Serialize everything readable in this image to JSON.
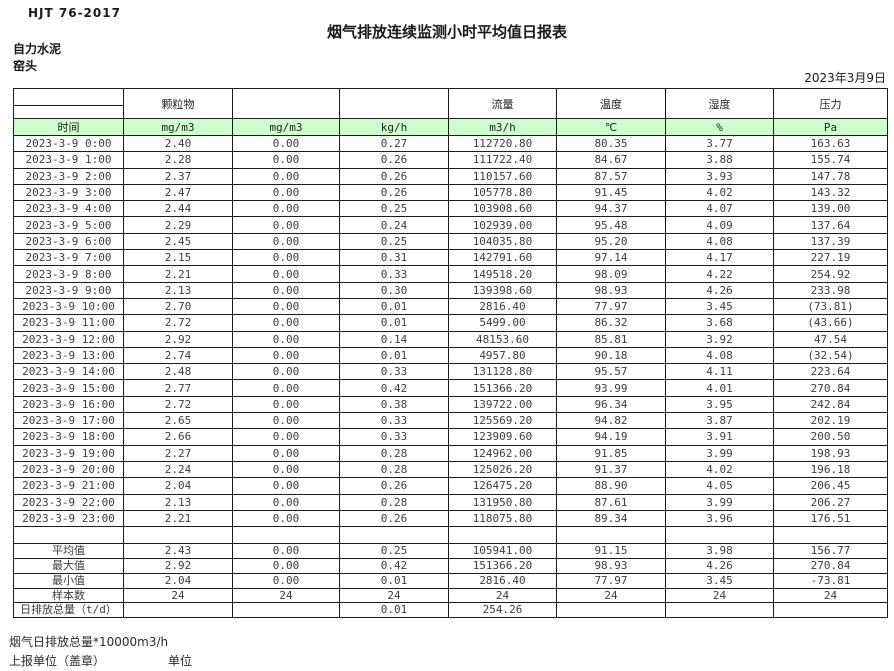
{
  "header": {
    "standard": "HJT  76-2017",
    "title": "烟气排放连续监测小时平均值日报表",
    "company": "自力水泥",
    "location": "窑头",
    "date": "2023年3月9日"
  },
  "table": {
    "group_headers": [
      "",
      "颗粒物",
      "",
      "",
      "流量",
      "温度",
      "湿度",
      "压力"
    ],
    "unit_headers": [
      "时间",
      "mg/m3",
      "mg/m3",
      "kg/h",
      "m3/h",
      "℃",
      "%",
      "Pa"
    ],
    "rows": [
      {
        "time": "2023-3-9 0:00",
        "values": [
          "2.40",
          "0.00",
          "0.27",
          "112720.80",
          "80.35",
          "3.77",
          "163.63"
        ]
      },
      {
        "time": "2023-3-9 1:00",
        "values": [
          "2.28",
          "0.00",
          "0.26",
          "111722.40",
          "84.67",
          "3.88",
          "155.74"
        ]
      },
      {
        "time": "2023-3-9 2:00",
        "values": [
          "2.37",
          "0.00",
          "0.26",
          "110157.60",
          "87.57",
          "3.93",
          "147.78"
        ]
      },
      {
        "time": "2023-3-9 3:00",
        "values": [
          "2.47",
          "0.00",
          "0.26",
          "105778.80",
          "91.45",
          "4.02",
          "143.32"
        ]
      },
      {
        "time": "2023-3-9 4:00",
        "values": [
          "2.44",
          "0.00",
          "0.25",
          "103908.60",
          "94.37",
          "4.07",
          "139.00"
        ]
      },
      {
        "time": "2023-3-9 5:00",
        "values": [
          "2.29",
          "0.00",
          "0.24",
          "102939.00",
          "95.48",
          "4.09",
          "137.64"
        ]
      },
      {
        "time": "2023-3-9 6:00",
        "values": [
          "2.45",
          "0.00",
          "0.25",
          "104035.80",
          "95.20",
          "4.08",
          "137.39"
        ]
      },
      {
        "time": "2023-3-9 7:00",
        "values": [
          "2.15",
          "0.00",
          "0.31",
          "142791.60",
          "97.14",
          "4.17",
          "227.19"
        ]
      },
      {
        "time": "2023-3-9 8:00",
        "values": [
          "2.21",
          "0.00",
          "0.33",
          "149518.20",
          "98.09",
          "4.22",
          "254.92"
        ]
      },
      {
        "time": "2023-3-9 9:00",
        "values": [
          "2.13",
          "0.00",
          "0.30",
          "139398.60",
          "98.93",
          "4.26",
          "233.98"
        ]
      },
      {
        "time": "2023-3-9 10:00",
        "values": [
          "2.70",
          "0.00",
          "0.01",
          "2816.40",
          "77.97",
          "3.45",
          "(73.81)"
        ]
      },
      {
        "time": "2023-3-9 11:00",
        "values": [
          "2.72",
          "0.00",
          "0.01",
          "5499.00",
          "86.32",
          "3.68",
          "(43.66)"
        ]
      },
      {
        "time": "2023-3-9 12:00",
        "values": [
          "2.92",
          "0.00",
          "0.14",
          "48153.60",
          "85.81",
          "3.92",
          "47.54"
        ]
      },
      {
        "time": "2023-3-9 13:00",
        "values": [
          "2.74",
          "0.00",
          "0.01",
          "4957.80",
          "90.18",
          "4.08",
          "(32.54)"
        ]
      },
      {
        "time": "2023-3-9 14:00",
        "values": [
          "2.48",
          "0.00",
          "0.33",
          "131128.80",
          "95.57",
          "4.11",
          "223.64"
        ]
      },
      {
        "time": "2023-3-9 15:00",
        "values": [
          "2.77",
          "0.00",
          "0.42",
          "151366.20",
          "93.99",
          "4.01",
          "270.84"
        ]
      },
      {
        "time": "2023-3-9 16:00",
        "values": [
          "2.72",
          "0.00",
          "0.38",
          "139722.00",
          "96.34",
          "3.95",
          "242.84"
        ]
      },
      {
        "time": "2023-3-9 17:00",
        "values": [
          "2.65",
          "0.00",
          "0.33",
          "125569.20",
          "94.82",
          "3.87",
          "202.19"
        ]
      },
      {
        "time": "2023-3-9 18:00",
        "values": [
          "2.66",
          "0.00",
          "0.33",
          "123909.60",
          "94.19",
          "3.91",
          "200.50"
        ]
      },
      {
        "time": "2023-3-9 19:00",
        "values": [
          "2.27",
          "0.00",
          "0.28",
          "124962.00",
          "91.85",
          "3.99",
          "198.93"
        ]
      },
      {
        "time": "2023-3-9 20:00",
        "values": [
          "2.24",
          "0.00",
          "0.28",
          "125026.20",
          "91.37",
          "4.02",
          "196.18"
        ]
      },
      {
        "time": "2023-3-9 21:00",
        "values": [
          "2.04",
          "0.00",
          "0.26",
          "126475.20",
          "88.90",
          "4.05",
          "206.45"
        ]
      },
      {
        "time": "2023-3-9 22:00",
        "values": [
          "2.13",
          "0.00",
          "0.28",
          "131950.80",
          "87.61",
          "3.99",
          "206.27"
        ]
      },
      {
        "time": "2023-3-9 23:00",
        "values": [
          "2.21",
          "0.00",
          "0.26",
          "118075.80",
          "89.34",
          "3.96",
          "176.51"
        ]
      }
    ],
    "summary": [
      {
        "label": "平均值",
        "values": [
          "2.43",
          "0.00",
          "0.25",
          "105941.00",
          "91.15",
          "3.98",
          "156.77"
        ]
      },
      {
        "label": "最大值",
        "values": [
          "2.92",
          "0.00",
          "0.42",
          "151366.20",
          "98.93",
          "4.26",
          "270.84"
        ]
      },
      {
        "label": "最小值",
        "values": [
          "2.04",
          "0.00",
          "0.01",
          "2816.40",
          "77.97",
          "3.45",
          "-73.81"
        ]
      },
      {
        "label": "样本数",
        "values": [
          "24",
          "24",
          "24",
          "24",
          "24",
          "24",
          "24"
        ]
      },
      {
        "label": "日排放总量（t/d）",
        "values": [
          "",
          "",
          "0.01",
          "254.26",
          "",
          "",
          ""
        ]
      }
    ]
  },
  "footer": {
    "note": "烟气日排放总量*10000m3/h",
    "report_unit": "上报单位（盖章）",
    "unit": "单位"
  },
  "colors": {
    "header_green": "#ccffcc",
    "negative_red": "#e8262a"
  }
}
